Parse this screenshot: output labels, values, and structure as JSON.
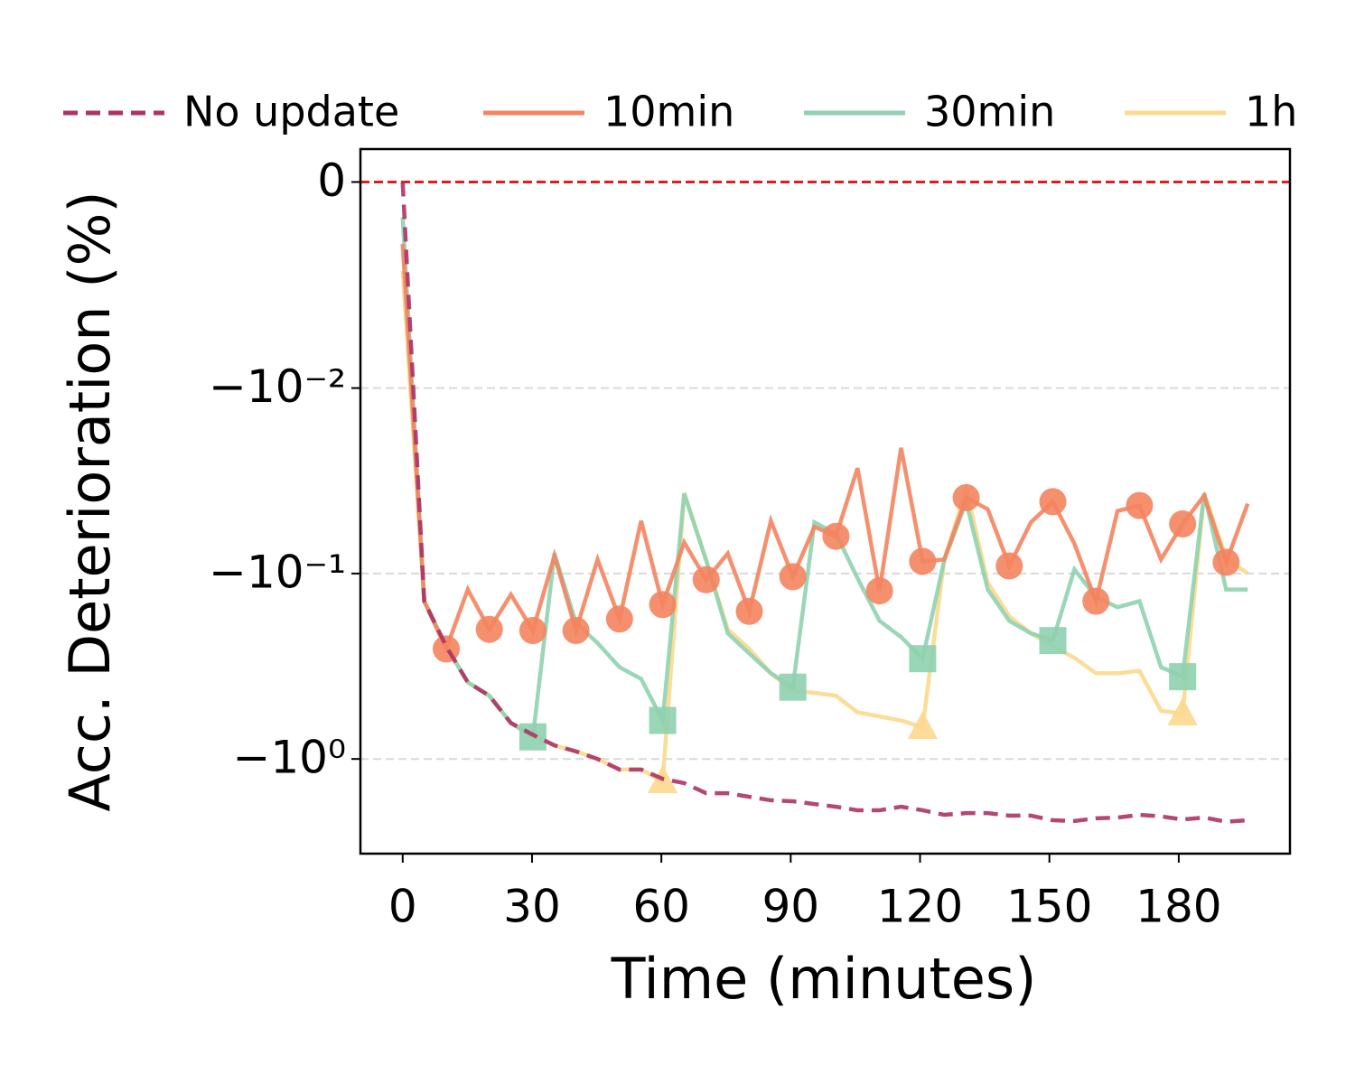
{
  "chart_data": {
    "type": "line",
    "xlabel": "Time (minutes)",
    "ylabel": "Acc. Deterioration (%)",
    "x": [
      0,
      5.0,
      10.1,
      15.1,
      20.1,
      25.1,
      30.2,
      35.2,
      40.2,
      45.2,
      50.3,
      55.3,
      60.3,
      65.3,
      70.4,
      75.4,
      80.4,
      85.4,
      90.5,
      95.5,
      100.5,
      105.5,
      110.6,
      115.6,
      120.6,
      125.6,
      130.7,
      135.7,
      140.7,
      145.7,
      150.8,
      155.8,
      160.8,
      165.8,
      170.9,
      175.9,
      180.9,
      185.9,
      191.0,
      196.0
    ],
    "series": [
      {
        "name": "No update",
        "color": "#ad3366",
        "linestyle": "dashed",
        "marker": "none",
        "markevery": [],
        "values": [
          0,
          -0.141,
          -0.247,
          -0.386,
          -0.456,
          -0.64,
          -0.74,
          -0.845,
          -0.91,
          -1.0,
          -1.14,
          -1.14,
          -1.28,
          -1.35,
          -1.53,
          -1.53,
          -1.6,
          -1.67,
          -1.69,
          -1.75,
          -1.81,
          -1.89,
          -1.89,
          -1.81,
          -1.89,
          -2.0,
          -1.96,
          -1.96,
          -2.02,
          -2.02,
          -2.14,
          -2.16,
          -2.09,
          -2.07,
          -2.0,
          -2.04,
          -2.12,
          -2.07,
          -2.18,
          -2.14
        ]
      },
      {
        "name": "10min",
        "color": "#f4845f",
        "linestyle": "solid",
        "marker": "circle",
        "markevery": [
          2,
          4,
          6,
          8,
          10,
          12,
          14,
          16,
          18,
          20,
          22,
          24,
          26,
          28,
          30,
          32,
          34,
          36,
          38
        ],
        "values": [
          -0.003,
          -0.141,
          -0.255,
          -0.122,
          -0.2,
          -0.13,
          -0.203,
          -0.08,
          -0.203,
          -0.084,
          -0.176,
          -0.052,
          -0.147,
          -0.068,
          -0.108,
          -0.078,
          -0.16,
          -0.052,
          -0.104,
          -0.056,
          -0.063,
          -0.027,
          -0.124,
          -0.021,
          -0.086,
          -0.084,
          -0.039,
          -0.045,
          -0.091,
          -0.053,
          -0.041,
          -0.069,
          -0.141,
          -0.046,
          -0.043,
          -0.084,
          -0.054,
          -0.038,
          -0.087,
          -0.042
        ]
      },
      {
        "name": "30min",
        "color": "#8fd1b0",
        "linestyle": "solid",
        "marker": "square",
        "markevery": [
          6,
          12,
          18,
          24,
          30,
          36
        ],
        "values": [
          -0.0017,
          -0.141,
          -0.247,
          -0.386,
          -0.456,
          -0.64,
          -0.76,
          -0.078,
          -0.185,
          -0.237,
          -0.32,
          -0.37,
          -0.62,
          -0.037,
          -0.085,
          -0.21,
          -0.27,
          -0.345,
          -0.41,
          -0.053,
          -0.061,
          -0.106,
          -0.18,
          -0.22,
          -0.288,
          -0.085,
          -0.041,
          -0.122,
          -0.18,
          -0.21,
          -0.23,
          -0.095,
          -0.134,
          -0.152,
          -0.141,
          -0.32,
          -0.36,
          -0.037,
          -0.122,
          -0.122
        ]
      },
      {
        "name": "1h",
        "color": "#fbd98d",
        "linestyle": "solid",
        "marker": "triangle",
        "markevery": [
          12,
          24,
          36
        ],
        "values": [
          -0.0043,
          -0.141,
          -0.247,
          -0.386,
          -0.456,
          -0.64,
          -0.74,
          -0.845,
          -0.91,
          -1.0,
          -1.14,
          -1.14,
          -1.32,
          -0.037,
          -0.085,
          -0.2,
          -0.255,
          -0.345,
          -0.43,
          -0.44,
          -0.456,
          -0.56,
          -0.59,
          -0.62,
          -0.675,
          -0.085,
          -0.035,
          -0.112,
          -0.17,
          -0.21,
          -0.247,
          -0.285,
          -0.345,
          -0.345,
          -0.335,
          -0.55,
          -0.57,
          -0.037,
          -0.083,
          -0.1
        ]
      }
    ],
    "hline": {
      "y": 0,
      "color": "#e41a1c"
    },
    "xlim": [
      -9.8,
      205.8
    ],
    "xticks": [
      0,
      30,
      60,
      90,
      120,
      150,
      180
    ],
    "ylim": [
      -3.24,
      0.0016
    ],
    "yscale": "symlog",
    "linthresh": 0.01,
    "linscale": 1,
    "yticks": [
      0,
      {
        "value": -0.01,
        "label": "−10⁻²"
      },
      {
        "value": -0.1,
        "label": "−10⁻¹"
      },
      {
        "value": -1,
        "label": "−10⁰"
      }
    ],
    "grid": true,
    "legend": "top"
  }
}
